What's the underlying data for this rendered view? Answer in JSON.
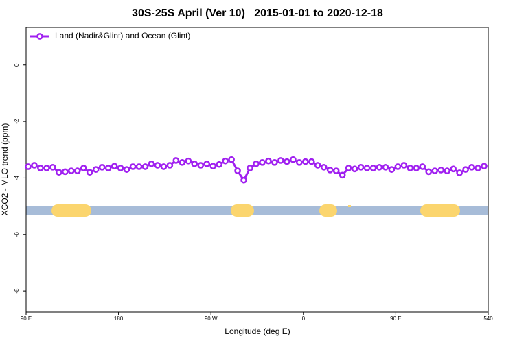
{
  "chart_data": {
    "type": "line",
    "title": "30S-25S April (Ver 10)   2015-01-01 to 2020-12-18",
    "x_label": "Longitude (deg E)",
    "y_label": "XCO2 - MLO trend (ppm)",
    "x": [
      92,
      98,
      104,
      110,
      116,
      122,
      128,
      134,
      140,
      146,
      152,
      158,
      164,
      170,
      176,
      182,
      188,
      194,
      200,
      206,
      212,
      218,
      224,
      230,
      236,
      242,
      248,
      254,
      260,
      266,
      272,
      278,
      284,
      290,
      296,
      302,
      308,
      314,
      320,
      326,
      332,
      338,
      344,
      350,
      356,
      362,
      368,
      374,
      380,
      386,
      392,
      398,
      404,
      410,
      416,
      422,
      428,
      434,
      440,
      446,
      452,
      458,
      464,
      470,
      476,
      482,
      488,
      494,
      500,
      506,
      512,
      518,
      524,
      530,
      536
    ],
    "series": [
      {
        "name": "Land (Nadir&Glint) and Ocean (Glint)",
        "color": "#a020f0",
        "values": [
          -3.6,
          -3.55,
          -3.65,
          -3.65,
          -3.62,
          -3.8,
          -3.78,
          -3.75,
          -3.75,
          -3.65,
          -3.8,
          -3.7,
          -3.62,
          -3.65,
          -3.58,
          -3.65,
          -3.7,
          -3.6,
          -3.6,
          -3.6,
          -3.5,
          -3.55,
          -3.6,
          -3.55,
          -3.38,
          -3.45,
          -3.4,
          -3.5,
          -3.55,
          -3.5,
          -3.58,
          -3.52,
          -3.4,
          -3.35,
          -3.75,
          -4.08,
          -3.65,
          -3.5,
          -3.45,
          -3.4,
          -3.45,
          -3.38,
          -3.42,
          -3.35,
          -3.45,
          -3.42,
          -3.42,
          -3.55,
          -3.62,
          -3.72,
          -3.75,
          -3.9,
          -3.65,
          -3.68,
          -3.62,
          -3.65,
          -3.65,
          -3.62,
          -3.62,
          -3.7,
          -3.6,
          -3.55,
          -3.65,
          -3.65,
          -3.6,
          -3.78,
          -3.75,
          -3.72,
          -3.75,
          -3.68,
          -3.82,
          -3.7,
          -3.62,
          -3.65,
          -3.58
        ]
      }
    ],
    "xlim": [
      90,
      540
    ],
    "xticks": [
      {
        "value": 90,
        "label": "90 E"
      },
      180,
      {
        "value": 270,
        "label": "90 W"
      },
      {
        "value": 360,
        "label": "0"
      },
      {
        "value": 450,
        "label": "90 E"
      },
      180,
      540
    ],
    "ylim": [
      -8.75,
      1.33
    ],
    "yticks": [
      0,
      -2,
      -4,
      -6,
      -8
    ],
    "legend": "top-left"
  }
}
